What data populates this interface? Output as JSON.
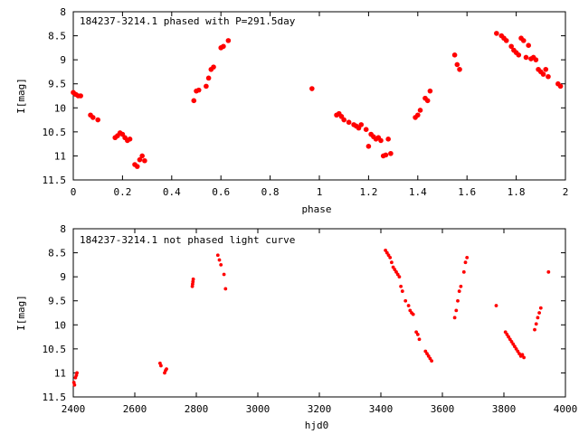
{
  "chart_data": [
    {
      "type": "scatter",
      "title": "184237-3214.1 phased with P=291.5day",
      "xlabel": "phase",
      "ylabel": "I[mag]",
      "xlim": [
        0,
        2
      ],
      "ylim": [
        11.5,
        8
      ],
      "y_inverted": true,
      "xticks": [
        "0",
        "0.2",
        "0.4",
        "0.6",
        "0.8",
        "1",
        "1.2",
        "1.4",
        "1.6",
        "1.8",
        "2"
      ],
      "xtick_values": [
        0,
        0.2,
        0.4,
        0.6,
        0.8,
        1.0,
        1.2,
        1.4,
        1.6,
        1.8,
        2.0
      ],
      "yticks": [
        "8",
        "8.5",
        "9",
        "9.5",
        "10",
        "10.5",
        "11",
        "11.5"
      ],
      "ytick_values": [
        8,
        8.5,
        9,
        9.5,
        10,
        10.5,
        11,
        11.5
      ],
      "grid": false,
      "marker_color": "#ff0000",
      "series": [
        {
          "x": [
            0.0,
            0.01,
            0.02,
            0.03,
            0.07,
            0.08,
            0.1,
            0.17,
            0.18,
            0.19,
            0.2,
            0.21,
            0.22,
            0.23,
            0.25,
            0.26,
            0.27,
            0.28,
            0.29,
            0.49,
            0.5,
            0.51,
            0.54,
            0.55,
            0.56,
            0.57,
            0.6,
            0.61,
            0.63,
            0.97,
            1.07,
            1.08,
            1.09,
            1.1,
            1.12,
            1.14,
            1.15,
            1.16,
            1.17,
            1.19,
            1.2,
            1.21,
            1.22,
            1.23,
            1.24,
            1.25,
            1.26,
            1.27,
            1.28,
            1.29,
            1.39,
            1.4,
            1.41,
            1.43,
            1.44,
            1.45,
            1.55,
            1.56,
            1.57,
            1.72,
            1.74,
            1.75,
            1.76,
            1.78,
            1.79,
            1.8,
            1.81,
            1.82,
            1.83,
            1.84,
            1.85,
            1.86,
            1.87,
            1.88,
            1.89,
            1.9,
            1.91,
            1.92,
            1.93,
            1.97,
            1.98
          ],
          "y": [
            9.68,
            9.72,
            9.75,
            9.75,
            10.15,
            10.2,
            10.25,
            10.62,
            10.58,
            10.52,
            10.55,
            10.62,
            10.68,
            10.65,
            11.18,
            11.22,
            11.08,
            11.0,
            11.1,
            9.85,
            9.65,
            9.63,
            9.55,
            9.38,
            9.2,
            9.15,
            8.75,
            8.72,
            8.6,
            9.6,
            10.15,
            10.12,
            10.18,
            10.25,
            10.3,
            10.35,
            10.38,
            10.42,
            10.35,
            10.45,
            10.8,
            10.55,
            10.6,
            10.65,
            10.62,
            10.68,
            11.0,
            10.98,
            10.65,
            10.95,
            10.2,
            10.15,
            10.05,
            9.8,
            9.85,
            9.65,
            8.9,
            9.1,
            9.2,
            8.45,
            8.5,
            8.55,
            8.6,
            8.72,
            8.8,
            8.85,
            8.9,
            8.55,
            8.6,
            8.95,
            8.7,
            8.98,
            8.95,
            9.0,
            9.2,
            9.25,
            9.3,
            9.2,
            9.35,
            9.5,
            9.55
          ]
        }
      ]
    },
    {
      "type": "scatter",
      "title": "184237-3214.1 not phased light curve",
      "xlabel": "hjd0",
      "ylabel": "I[mag]",
      "xlim": [
        2400,
        4000
      ],
      "ylim": [
        11.5,
        8
      ],
      "y_inverted": true,
      "xticks": [
        "2400",
        "2600",
        "2800",
        "3000",
        "3200",
        "3400",
        "3600",
        "3800",
        "4000"
      ],
      "xtick_values": [
        2400,
        2600,
        2800,
        3000,
        3200,
        3400,
        3600,
        3800,
        4000
      ],
      "yticks": [
        "8",
        "8.5",
        "9",
        "9.5",
        "10",
        "10.5",
        "11",
        "11.5"
      ],
      "ytick_values": [
        8,
        8.5,
        9,
        9.5,
        10,
        10.5,
        11,
        11.5
      ],
      "grid": false,
      "marker_color": "#ff0000",
      "series": [
        {
          "x": [
            2402,
            2404,
            2407,
            2410,
            2412,
            2682,
            2685,
            2697,
            2700,
            2703,
            2787,
            2788,
            2789,
            2790,
            2870,
            2875,
            2880,
            2890,
            2895,
            3415,
            3420,
            3425,
            3430,
            3435,
            3440,
            3445,
            3450,
            3455,
            3460,
            3465,
            3470,
            3480,
            3490,
            3495,
            3500,
            3505,
            3515,
            3520,
            3525,
            3545,
            3550,
            3555,
            3560,
            3565,
            3640,
            3645,
            3650,
            3655,
            3660,
            3670,
            3675,
            3680,
            3775,
            3805,
            3810,
            3815,
            3820,
            3825,
            3830,
            3835,
            3840,
            3845,
            3850,
            3855,
            3860,
            3865,
            3900,
            3905,
            3910,
            3915,
            3920,
            3945
          ],
          "y": [
            11.2,
            11.25,
            11.1,
            11.05,
            11.0,
            10.8,
            10.85,
            11.0,
            10.95,
            10.92,
            9.2,
            9.15,
            9.1,
            9.05,
            8.55,
            8.65,
            8.75,
            8.95,
            9.25,
            8.45,
            8.5,
            8.55,
            8.6,
            8.7,
            8.8,
            8.85,
            8.9,
            8.95,
            9.0,
            9.2,
            9.3,
            9.5,
            9.6,
            9.7,
            9.75,
            9.78,
            10.15,
            10.2,
            10.3,
            10.55,
            10.6,
            10.65,
            10.7,
            10.75,
            9.85,
            9.7,
            9.5,
            9.3,
            9.2,
            8.9,
            8.7,
            8.6,
            9.6,
            10.15,
            10.2,
            10.25,
            10.3,
            10.35,
            10.4,
            10.45,
            10.5,
            10.55,
            10.6,
            10.65,
            10.62,
            10.68,
            10.1,
            9.98,
            9.85,
            9.75,
            9.65,
            8.9
          ]
        }
      ]
    }
  ]
}
